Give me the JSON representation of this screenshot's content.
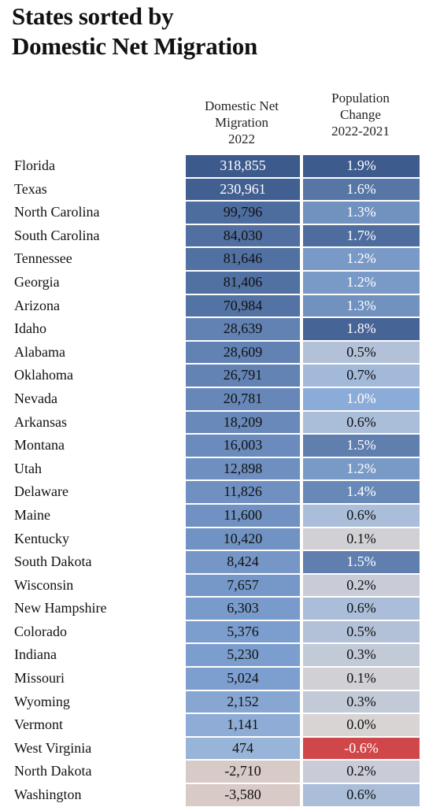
{
  "title_line1": "States sorted by",
  "title_line2": "Domestic Net Migration",
  "col_migration_label": "Domestic Net Migration 2022",
  "col_population_label": "Population Change 2022-2021",
  "colors": {
    "migration_high": "#3c5a8c",
    "migration_low": "#d8cac6",
    "pop_high": "#3d5b8d",
    "pop_low": "#c9d8e8",
    "pop_negative": "#d0474a"
  },
  "chart_data": {
    "type": "table",
    "title": "States sorted by Domestic Net Migration",
    "columns": [
      "Domestic Net Migration 2022",
      "Population Change 2022-2021"
    ],
    "rows": [
      {
        "state": "Florida",
        "migration": 318855,
        "migration_label": "318,855",
        "pop_change": 1.9,
        "pop_label": "1.9%"
      },
      {
        "state": "Texas",
        "migration": 230961,
        "migration_label": "230,961",
        "pop_change": 1.6,
        "pop_label": "1.6%"
      },
      {
        "state": "North Carolina",
        "migration": 99796,
        "migration_label": "99,796",
        "pop_change": 1.3,
        "pop_label": "1.3%"
      },
      {
        "state": "South Carolina",
        "migration": 84030,
        "migration_label": "84,030",
        "pop_change": 1.7,
        "pop_label": "1.7%"
      },
      {
        "state": "Tennessee",
        "migration": 81646,
        "migration_label": "81,646",
        "pop_change": 1.2,
        "pop_label": "1.2%"
      },
      {
        "state": "Georgia",
        "migration": 81406,
        "migration_label": "81,406",
        "pop_change": 1.2,
        "pop_label": "1.2%"
      },
      {
        "state": "Arizona",
        "migration": 70984,
        "migration_label": "70,984",
        "pop_change": 1.3,
        "pop_label": "1.3%"
      },
      {
        "state": "Idaho",
        "migration": 28639,
        "migration_label": "28,639",
        "pop_change": 1.8,
        "pop_label": "1.8%"
      },
      {
        "state": "Alabama",
        "migration": 28609,
        "migration_label": "28,609",
        "pop_change": 0.5,
        "pop_label": "0.5%"
      },
      {
        "state": "Oklahoma",
        "migration": 26791,
        "migration_label": "26,791",
        "pop_change": 0.7,
        "pop_label": "0.7%"
      },
      {
        "state": "Nevada",
        "migration": 20781,
        "migration_label": "20,781",
        "pop_change": 1.0,
        "pop_label": "1.0%"
      },
      {
        "state": "Arkansas",
        "migration": 18209,
        "migration_label": "18,209",
        "pop_change": 0.6,
        "pop_label": "0.6%"
      },
      {
        "state": "Montana",
        "migration": 16003,
        "migration_label": "16,003",
        "pop_change": 1.5,
        "pop_label": "1.5%"
      },
      {
        "state": "Utah",
        "migration": 12898,
        "migration_label": "12,898",
        "pop_change": 1.2,
        "pop_label": "1.2%"
      },
      {
        "state": "Delaware",
        "migration": 11826,
        "migration_label": "11,826",
        "pop_change": 1.4,
        "pop_label": "1.4%"
      },
      {
        "state": "Maine",
        "migration": 11600,
        "migration_label": "11,600",
        "pop_change": 0.6,
        "pop_label": "0.6%"
      },
      {
        "state": "Kentucky",
        "migration": 10420,
        "migration_label": "10,420",
        "pop_change": 0.1,
        "pop_label": "0.1%"
      },
      {
        "state": "South Dakota",
        "migration": 8424,
        "migration_label": "8,424",
        "pop_change": 1.5,
        "pop_label": "1.5%"
      },
      {
        "state": "Wisconsin",
        "migration": 7657,
        "migration_label": "7,657",
        "pop_change": 0.2,
        "pop_label": "0.2%"
      },
      {
        "state": "New Hampshire",
        "migration": 6303,
        "migration_label": "6,303",
        "pop_change": 0.6,
        "pop_label": "0.6%"
      },
      {
        "state": "Colorado",
        "migration": 5376,
        "migration_label": "5,376",
        "pop_change": 0.5,
        "pop_label": "0.5%"
      },
      {
        "state": "Indiana",
        "migration": 5230,
        "migration_label": "5,230",
        "pop_change": 0.3,
        "pop_label": "0.3%"
      },
      {
        "state": "Missouri",
        "migration": 5024,
        "migration_label": "5,024",
        "pop_change": 0.1,
        "pop_label": "0.1%"
      },
      {
        "state": "Wyoming",
        "migration": 2152,
        "migration_label": "2,152",
        "pop_change": 0.3,
        "pop_label": "0.3%"
      },
      {
        "state": "Vermont",
        "migration": 1141,
        "migration_label": "1,141",
        "pop_change": 0.0,
        "pop_label": "0.0%"
      },
      {
        "state": "West Virginia",
        "migration": 474,
        "migration_label": "474",
        "pop_change": -0.6,
        "pop_label": "-0.6%"
      },
      {
        "state": "North Dakota",
        "migration": -2710,
        "migration_label": "-2,710",
        "pop_change": 0.2,
        "pop_label": "0.2%"
      },
      {
        "state": "Washington",
        "migration": -3580,
        "migration_label": "-3,580",
        "pop_change": 0.6,
        "pop_label": "0.6%"
      }
    ]
  }
}
